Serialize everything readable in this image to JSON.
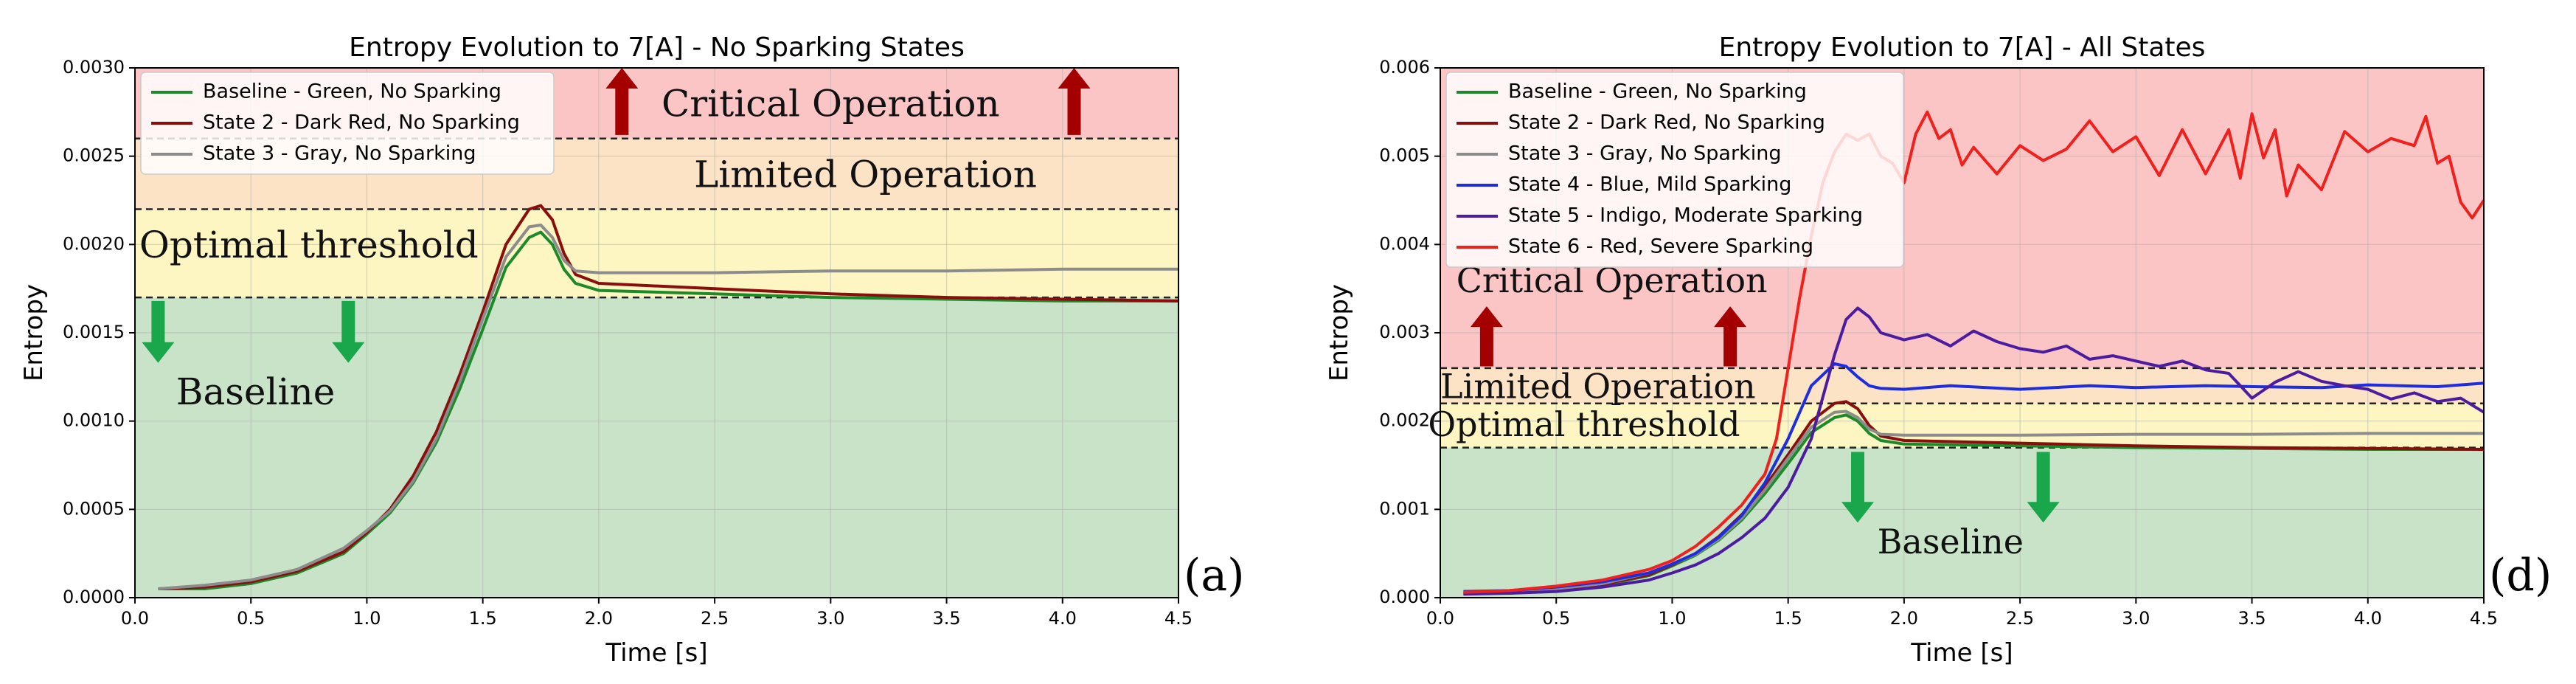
{
  "chart_data": [
    {
      "type": "line",
      "title": "Entropy Evolution to 7[A] - No Sparking States",
      "xlabel": "Time [s]",
      "ylabel": "Entropy",
      "xlim": [
        0,
        4.5
      ],
      "ylim": [
        0,
        0.003
      ],
      "xticks": [
        0,
        0.5,
        1,
        1.5,
        2,
        2.5,
        3,
        3.5,
        4,
        4.5
      ],
      "xtick_labels": [
        "0.0",
        "0.5",
        "1.0",
        "1.5",
        "2.0",
        "2.5",
        "3.0",
        "3.5",
        "4.0",
        "4.5"
      ],
      "yticks": [
        0,
        0.0005,
        0.001,
        0.0015,
        0.002,
        0.0025,
        0.003
      ],
      "ytick_labels": [
        "0.0000",
        "0.0005",
        "0.0010",
        "0.0015",
        "0.0020",
        "0.0025",
        "0.0030"
      ],
      "grid": true,
      "panel_label": "(a)",
      "legend_position": "top-left",
      "bands": [
        {
          "name": "Baseline",
          "from": 0,
          "to": 0.0017,
          "color": "#c8e3c8"
        },
        {
          "name": "Optimal threshold",
          "from": 0.0017,
          "to": 0.0022,
          "color": "#fdf6c3"
        },
        {
          "name": "Limited Operation",
          "from": 0.0022,
          "to": 0.0026,
          "color": "#fde3c6"
        },
        {
          "name": "Critical Operation",
          "from": 0.0026,
          "to": 0.003,
          "color": "#fbc5c5"
        }
      ],
      "thresholds": [
        0.0017,
        0.0022,
        0.0026
      ],
      "annotations": [
        {
          "text": "Critical Operation",
          "x": 3.0,
          "y": 0.00278
        },
        {
          "text": "Limited Operation",
          "x": 3.15,
          "y": 0.00238
        },
        {
          "text": "Optimal threshold",
          "x": 0.75,
          "y": 0.00198
        },
        {
          "text": "Baseline",
          "x": 0.52,
          "y": 0.00115
        }
      ],
      "arrows": [
        {
          "direction": "up",
          "x": 2.1,
          "y_from": 0.00262,
          "y_to": 0.003,
          "color": "#a40000"
        },
        {
          "direction": "up",
          "x": 4.05,
          "y_from": 0.00262,
          "y_to": 0.003,
          "color": "#a40000"
        },
        {
          "direction": "down",
          "x": 0.1,
          "y_from": 0.00168,
          "y_to": 0.00133,
          "color": "#1aa64a"
        },
        {
          "direction": "down",
          "x": 0.92,
          "y_from": 0.00168,
          "y_to": 0.00133,
          "color": "#1aa64a"
        }
      ],
      "series": [
        {
          "name": "Baseline - Green, No Sparking",
          "color": "#1b8a2a",
          "x": [
            0.1,
            0.3,
            0.5,
            0.7,
            0.9,
            1.0,
            1.1,
            1.2,
            1.3,
            1.4,
            1.5,
            1.6,
            1.7,
            1.75,
            1.8,
            1.85,
            1.9,
            2.0,
            2.5,
            3.0,
            3.5,
            4.0,
            4.5
          ],
          "y": [
            5e-05,
            5e-05,
            8e-05,
            0.00014,
            0.00025,
            0.00036,
            0.00048,
            0.00065,
            0.00088,
            0.00118,
            0.00152,
            0.00187,
            0.00204,
            0.00207,
            0.002,
            0.00186,
            0.00178,
            0.00174,
            0.00172,
            0.0017,
            0.00169,
            0.00168,
            0.00168
          ]
        },
        {
          "name": "State 2 - Dark Red, No Sparking",
          "color": "#8b0e0e",
          "x": [
            0.1,
            0.3,
            0.5,
            0.7,
            0.9,
            1.0,
            1.1,
            1.2,
            1.3,
            1.4,
            1.5,
            1.6,
            1.7,
            1.75,
            1.8,
            1.85,
            1.9,
            2.0,
            2.5,
            3.0,
            3.5,
            4.0,
            4.5
          ],
          "y": [
            5e-05,
            6e-05,
            9e-05,
            0.00015,
            0.00026,
            0.00037,
            0.0005,
            0.00069,
            0.00094,
            0.00126,
            0.00162,
            0.002,
            0.0022,
            0.00222,
            0.00214,
            0.00195,
            0.00183,
            0.00178,
            0.00175,
            0.00172,
            0.0017,
            0.00169,
            0.00168
          ]
        },
        {
          "name": "State 3 - Gray, No Sparking",
          "color": "#8c8c8c",
          "x": [
            0.1,
            0.3,
            0.5,
            0.7,
            0.9,
            1.0,
            1.1,
            1.2,
            1.3,
            1.4,
            1.5,
            1.6,
            1.7,
            1.75,
            1.8,
            1.85,
            1.9,
            2.0,
            2.5,
            3.0,
            3.5,
            4.0,
            4.5
          ],
          "y": [
            5e-05,
            7e-05,
            0.0001,
            0.00016,
            0.00028,
            0.00038,
            0.00049,
            0.00066,
            0.0009,
            0.00122,
            0.00158,
            0.00193,
            0.0021,
            0.00211,
            0.00204,
            0.00191,
            0.00185,
            0.00184,
            0.00184,
            0.00185,
            0.00185,
            0.00186,
            0.00186
          ]
        }
      ]
    },
    {
      "type": "line",
      "title": "Entropy Evolution to 7[A] - All States",
      "xlabel": "Time [s]",
      "ylabel": "Entropy",
      "xlim": [
        0,
        4.5
      ],
      "ylim": [
        0,
        0.006
      ],
      "xticks": [
        0,
        0.5,
        1,
        1.5,
        2,
        2.5,
        3,
        3.5,
        4,
        4.5
      ],
      "xtick_labels": [
        "0.0",
        "0.5",
        "1.0",
        "1.5",
        "2.0",
        "2.5",
        "3.0",
        "3.5",
        "4.0",
        "4.5"
      ],
      "yticks": [
        0,
        0.001,
        0.002,
        0.003,
        0.004,
        0.005,
        0.006
      ],
      "ytick_labels": [
        "0.000",
        "0.001",
        "0.002",
        "0.003",
        "0.004",
        "0.005",
        "0.006"
      ],
      "grid": true,
      "panel_label": "(d)",
      "legend_position": "top-left",
      "bands": [
        {
          "name": "Baseline",
          "from": 0,
          "to": 0.0017,
          "color": "#c8e3c8"
        },
        {
          "name": "Optimal threshold",
          "from": 0.0017,
          "to": 0.0022,
          "color": "#fdf6c3"
        },
        {
          "name": "Limited Operation",
          "from": 0.0022,
          "to": 0.0026,
          "color": "#fde3c6"
        },
        {
          "name": "Critical Operation",
          "from": 0.0026,
          "to": 0.006,
          "color": "#fbc5c5"
        }
      ],
      "thresholds": [
        0.0017,
        0.0022,
        0.0026
      ],
      "annotations": [
        {
          "text": "Critical Operation",
          "x": 0.74,
          "y": 0.00356
        },
        {
          "text": "Limited Operation",
          "x": 0.68,
          "y": 0.00236
        },
        {
          "text": "Optimal threshold",
          "x": 0.62,
          "y": 0.00193
        },
        {
          "text": "Baseline",
          "x": 2.2,
          "y": 0.0006
        }
      ],
      "arrows": [
        {
          "direction": "up",
          "x": 0.2,
          "y_from": 0.00262,
          "y_to": 0.0033,
          "color": "#a40000"
        },
        {
          "direction": "up",
          "x": 1.25,
          "y_from": 0.00262,
          "y_to": 0.0033,
          "color": "#a40000"
        },
        {
          "direction": "down",
          "x": 1.8,
          "y_from": 0.00165,
          "y_to": 0.00085,
          "color": "#1aa64a"
        },
        {
          "direction": "down",
          "x": 2.6,
          "y_from": 0.00165,
          "y_to": 0.00085,
          "color": "#1aa64a"
        }
      ],
      "series": [
        {
          "name": "Baseline - Green, No Sparking",
          "color": "#1b8a2a",
          "x": [
            0.1,
            0.3,
            0.5,
            0.7,
            0.9,
            1.0,
            1.1,
            1.2,
            1.3,
            1.4,
            1.5,
            1.6,
            1.7,
            1.75,
            1.8,
            1.85,
            1.9,
            2.0,
            2.5,
            3.0,
            3.5,
            4.0,
            4.5
          ],
          "y": [
            5e-05,
            5e-05,
            8e-05,
            0.00014,
            0.00025,
            0.00036,
            0.00048,
            0.00065,
            0.00088,
            0.00118,
            0.00152,
            0.00187,
            0.00204,
            0.00207,
            0.002,
            0.00186,
            0.00178,
            0.00174,
            0.00172,
            0.0017,
            0.00169,
            0.00168,
            0.00168
          ]
        },
        {
          "name": "State 2 - Dark Red, No Sparking",
          "color": "#8b0e0e",
          "x": [
            0.1,
            0.3,
            0.5,
            0.7,
            0.9,
            1.0,
            1.1,
            1.2,
            1.3,
            1.4,
            1.5,
            1.6,
            1.7,
            1.75,
            1.8,
            1.85,
            1.9,
            2.0,
            2.5,
            3.0,
            3.5,
            4.0,
            4.5
          ],
          "y": [
            5e-05,
            6e-05,
            9e-05,
            0.00015,
            0.00026,
            0.00037,
            0.0005,
            0.00069,
            0.00094,
            0.00126,
            0.00162,
            0.002,
            0.0022,
            0.00222,
            0.00214,
            0.00195,
            0.00183,
            0.00178,
            0.00175,
            0.00172,
            0.0017,
            0.00169,
            0.00168
          ]
        },
        {
          "name": "State 3 - Gray, No Sparking",
          "color": "#8c8c8c",
          "x": [
            0.1,
            0.3,
            0.5,
            0.7,
            0.9,
            1.0,
            1.1,
            1.2,
            1.3,
            1.4,
            1.5,
            1.6,
            1.7,
            1.75,
            1.8,
            1.85,
            1.9,
            2.0,
            2.5,
            3.0,
            3.5,
            4.0,
            4.5
          ],
          "y": [
            5e-05,
            7e-05,
            0.0001,
            0.00016,
            0.00028,
            0.00038,
            0.00049,
            0.00066,
            0.0009,
            0.00122,
            0.00158,
            0.00193,
            0.0021,
            0.00211,
            0.00204,
            0.00191,
            0.00185,
            0.00184,
            0.00184,
            0.00185,
            0.00185,
            0.00186,
            0.00186
          ]
        },
        {
          "name": "State 4 - Blue, Mild Sparking",
          "color": "#1f2de0",
          "x": [
            0.1,
            0.3,
            0.5,
            0.7,
            0.9,
            1.0,
            1.1,
            1.2,
            1.3,
            1.4,
            1.5,
            1.6,
            1.7,
            1.75,
            1.8,
            1.85,
            1.9,
            2.0,
            2.2,
            2.5,
            2.8,
            3.0,
            3.3,
            3.5,
            3.8,
            4.0,
            4.3,
            4.5
          ],
          "y": [
            7e-05,
            8e-05,
            0.00012,
            0.00018,
            0.00028,
            0.00038,
            0.0005,
            0.00068,
            0.00093,
            0.0013,
            0.0018,
            0.0024,
            0.00265,
            0.00262,
            0.0025,
            0.0024,
            0.00237,
            0.00236,
            0.0024,
            0.00236,
            0.0024,
            0.00238,
            0.0024,
            0.00239,
            0.00238,
            0.00241,
            0.00239,
            0.00243
          ]
        },
        {
          "name": "State 5 - Indigo, Moderate Sparking",
          "color": "#4b1ba0",
          "x": [
            0.1,
            0.3,
            0.5,
            0.7,
            0.9,
            1.0,
            1.1,
            1.2,
            1.3,
            1.4,
            1.5,
            1.6,
            1.7,
            1.75,
            1.8,
            1.85,
            1.9,
            2.0,
            2.1,
            2.2,
            2.3,
            2.4,
            2.5,
            2.6,
            2.7,
            2.8,
            2.9,
            3.0,
            3.1,
            3.2,
            3.3,
            3.4,
            3.5,
            3.6,
            3.7,
            3.8,
            3.9,
            4.0,
            4.1,
            4.2,
            4.3,
            4.4,
            4.5
          ],
          "y": [
            4e-05,
            5e-05,
            7e-05,
            0.00012,
            0.0002,
            0.00028,
            0.00037,
            0.0005,
            0.00068,
            0.0009,
            0.00125,
            0.0018,
            0.00275,
            0.00315,
            0.00328,
            0.00318,
            0.003,
            0.00292,
            0.00298,
            0.00285,
            0.00302,
            0.0029,
            0.00282,
            0.00278,
            0.00285,
            0.0027,
            0.00274,
            0.00268,
            0.00262,
            0.00268,
            0.00258,
            0.00254,
            0.00226,
            0.00244,
            0.00256,
            0.00245,
            0.0024,
            0.00236,
            0.00225,
            0.00232,
            0.00222,
            0.00226,
            0.0021
          ]
        },
        {
          "name": "State 6 - Red, Severe Sparking",
          "color": "#f0201c",
          "x": [
            0.1,
            0.3,
            0.5,
            0.7,
            0.9,
            1.0,
            1.1,
            1.2,
            1.3,
            1.4,
            1.45,
            1.5,
            1.55,
            1.6,
            1.65,
            1.7,
            1.75,
            1.8,
            1.85,
            1.9,
            1.95,
            2.0,
            2.05,
            2.1,
            2.15,
            2.2,
            2.25,
            2.3,
            2.4,
            2.5,
            2.6,
            2.7,
            2.8,
            2.9,
            3.0,
            3.1,
            3.2,
            3.3,
            3.4,
            3.45,
            3.5,
            3.55,
            3.6,
            3.65,
            3.7,
            3.8,
            3.9,
            4.0,
            4.1,
            4.2,
            4.25,
            4.3,
            4.35,
            4.4,
            4.45,
            4.5
          ],
          "y": [
            6e-05,
            8e-05,
            0.00013,
            0.0002,
            0.00032,
            0.00042,
            0.00058,
            0.0008,
            0.00105,
            0.0014,
            0.0018,
            0.0026,
            0.0034,
            0.0041,
            0.0047,
            0.00505,
            0.00525,
            0.00518,
            0.00525,
            0.005,
            0.00492,
            0.0047,
            0.00525,
            0.0055,
            0.0052,
            0.0053,
            0.0049,
            0.0051,
            0.0048,
            0.00512,
            0.00495,
            0.00508,
            0.0054,
            0.00505,
            0.00522,
            0.00478,
            0.0053,
            0.0048,
            0.0053,
            0.00475,
            0.00548,
            0.00498,
            0.0053,
            0.00455,
            0.0049,
            0.00462,
            0.00528,
            0.00505,
            0.0052,
            0.00512,
            0.00545,
            0.00492,
            0.005,
            0.00448,
            0.0043,
            0.0045
          ]
        }
      ]
    }
  ]
}
